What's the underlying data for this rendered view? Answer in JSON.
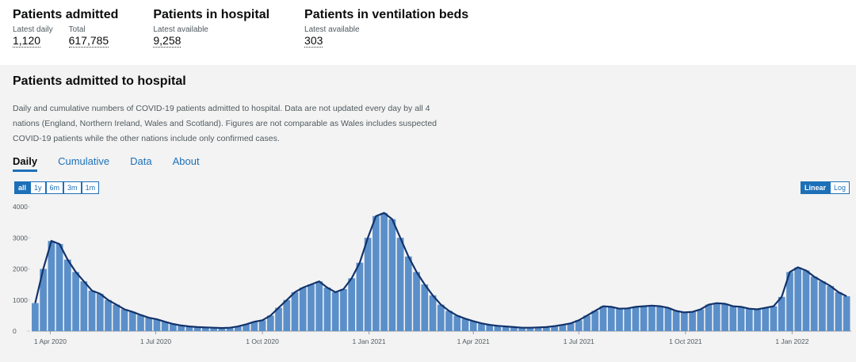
{
  "header": {
    "stats": [
      {
        "title": "Patients admitted",
        "items": [
          {
            "label": "Latest daily",
            "value": "1,120"
          },
          {
            "label": "Total",
            "value": "617,785"
          }
        ]
      },
      {
        "title": "Patients in hospital",
        "items": [
          {
            "label": "Latest available",
            "value": "9,258"
          }
        ]
      },
      {
        "title": "Patients in ventilation beds",
        "items": [
          {
            "label": "Latest available",
            "value": "303"
          }
        ]
      }
    ]
  },
  "card": {
    "title": "Patients admitted to hospital",
    "description": "Daily and cumulative numbers of COVID-19 patients admitted to hospital. Data are not updated every day by all 4 nations (England, Northern Ireland, Wales and Scotland). Figures are not comparable as Wales includes suspected COVID-19 patients while the other nations include only confirmed cases.",
    "tabs": [
      "Daily",
      "Cumulative",
      "Data",
      "About"
    ],
    "ranges": [
      "all",
      "1y",
      "6m",
      "3m",
      "1m"
    ],
    "scales": [
      "Linear",
      "Log"
    ]
  },
  "chart_data": {
    "type": "bar",
    "color": "#5b8fc9",
    "line_color": "#12336b",
    "grid": false,
    "x": [
      "2020-03-19",
      "2020-03-26",
      "2020-04-02",
      "2020-04-09",
      "2020-04-16",
      "2020-04-23",
      "2020-04-30",
      "2020-05-07",
      "2020-05-14",
      "2020-05-21",
      "2020-05-28",
      "2020-06-04",
      "2020-06-11",
      "2020-06-18",
      "2020-06-25",
      "2020-07-02",
      "2020-07-09",
      "2020-07-16",
      "2020-07-23",
      "2020-07-30",
      "2020-08-06",
      "2020-08-13",
      "2020-08-20",
      "2020-08-27",
      "2020-09-03",
      "2020-09-10",
      "2020-09-17",
      "2020-09-24",
      "2020-10-01",
      "2020-10-08",
      "2020-10-15",
      "2020-10-22",
      "2020-10-29",
      "2020-11-05",
      "2020-11-12",
      "2020-11-19",
      "2020-11-26",
      "2020-12-03",
      "2020-12-10",
      "2020-12-17",
      "2020-12-24",
      "2020-12-31",
      "2021-01-07",
      "2021-01-14",
      "2021-01-21",
      "2021-01-28",
      "2021-02-04",
      "2021-02-11",
      "2021-02-18",
      "2021-02-25",
      "2021-03-04",
      "2021-03-11",
      "2021-03-18",
      "2021-03-25",
      "2021-04-01",
      "2021-04-08",
      "2021-04-15",
      "2021-04-22",
      "2021-04-29",
      "2021-05-06",
      "2021-05-13",
      "2021-05-20",
      "2021-05-27",
      "2021-06-03",
      "2021-06-10",
      "2021-06-17",
      "2021-06-24",
      "2021-07-01",
      "2021-07-08",
      "2021-07-15",
      "2021-07-22",
      "2021-07-29",
      "2021-08-05",
      "2021-08-12",
      "2021-08-19",
      "2021-08-26",
      "2021-09-02",
      "2021-09-09",
      "2021-09-16",
      "2021-09-23",
      "2021-09-30",
      "2021-10-07",
      "2021-10-14",
      "2021-10-21",
      "2021-10-28",
      "2021-11-04",
      "2021-11-11",
      "2021-11-18",
      "2021-11-25",
      "2021-12-02",
      "2021-12-09",
      "2021-12-16",
      "2021-12-23",
      "2021-12-30",
      "2022-01-06",
      "2022-01-13",
      "2022-01-20",
      "2022-01-27",
      "2022-02-03",
      "2022-02-10",
      "2022-02-17"
    ],
    "values": [
      900,
      2000,
      2900,
      2800,
      2300,
      1900,
      1600,
      1300,
      1200,
      1000,
      850,
      700,
      620,
      520,
      430,
      380,
      300,
      230,
      180,
      150,
      130,
      120,
      110,
      100,
      110,
      150,
      220,
      300,
      350,
      500,
      750,
      1000,
      1250,
      1400,
      1500,
      1600,
      1400,
      1250,
      1350,
      1700,
      2200,
      3000,
      3700,
      3800,
      3600,
      3000,
      2400,
      1900,
      1500,
      1150,
      850,
      650,
      500,
      400,
      320,
      250,
      200,
      170,
      150,
      130,
      110,
      110,
      120,
      130,
      160,
      200,
      250,
      350,
      500,
      650,
      800,
      780,
      720,
      730,
      780,
      800,
      820,
      800,
      750,
      650,
      600,
      620,
      700,
      850,
      900,
      880,
      800,
      780,
      720,
      700,
      750,
      800,
      1100,
      1900,
      2050,
      1950,
      1750,
      1600,
      1450,
      1250,
      1120
    ],
    "xlim": [
      "2020-03-16",
      "2022-02-21"
    ],
    "xticks": [
      {
        "value": "2020-04-01",
        "label": "1 Apr 2020"
      },
      {
        "value": "2020-07-01",
        "label": "1 Jul 2020"
      },
      {
        "value": "2020-10-01",
        "label": "1 Oct 2020"
      },
      {
        "value": "2021-01-01",
        "label": "1 Jan 2021"
      },
      {
        "value": "2021-04-01",
        "label": "1 Apr 2021"
      },
      {
        "value": "2021-07-01",
        "label": "1 Jul 2021"
      },
      {
        "value": "2021-10-01",
        "label": "1 Oct 2021"
      },
      {
        "value": "2022-01-01",
        "label": "1 Jan 2022"
      }
    ],
    "ylim": [
      0,
      4000
    ],
    "yticks": [
      0,
      1000,
      2000,
      3000,
      4000
    ]
  }
}
